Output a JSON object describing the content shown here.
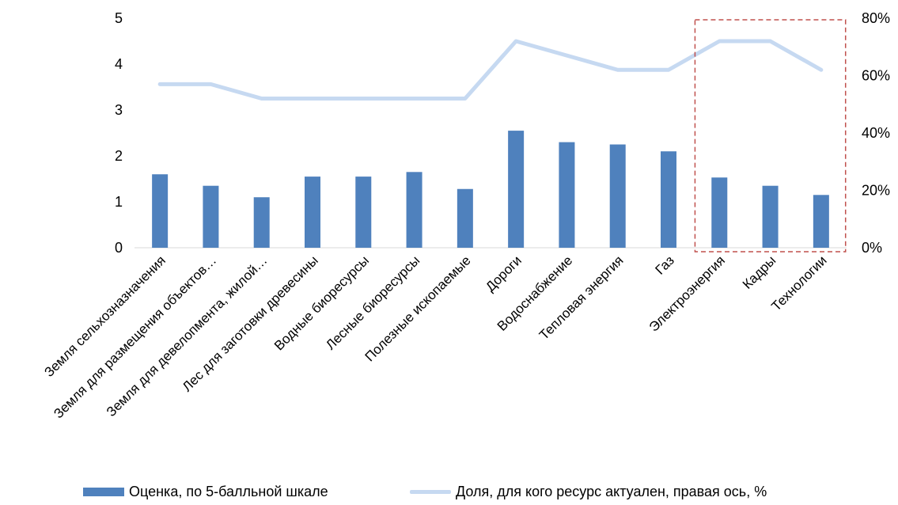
{
  "chart_data": {
    "type": "bar",
    "categories": [
      "Земля сельхозназначения",
      "Земля для размещения объектов…",
      "Земля для девелопмента, жилой…",
      "Лес для заготовки древесины",
      "Водные биоресурсы",
      "Лесные биоресурсы",
      "Полезные ископаемые",
      "Дороги",
      "Водоснабжение",
      "Тепловая энергия",
      "Газ",
      "Электроэнергия",
      "Кадры",
      "Технологии"
    ],
    "series": [
      {
        "name": "Оценка, по 5-балльной шкале",
        "type": "bar",
        "axis": "left",
        "values": [
          1.6,
          1.35,
          1.1,
          1.55,
          1.55,
          1.65,
          1.28,
          2.55,
          2.3,
          2.25,
          2.1,
          1.53,
          1.35,
          1.15
        ]
      },
      {
        "name": "Доля, для кого ресурс актуален, правая ось, %",
        "type": "line",
        "axis": "right",
        "values": [
          57,
          57,
          52,
          52,
          52,
          52,
          52,
          72,
          67,
          62,
          62,
          72,
          72,
          62
        ]
      }
    ],
    "y_left": {
      "min": 0,
      "max": 5,
      "ticks": [
        "0",
        "1",
        "2",
        "3",
        "4",
        "5"
      ]
    },
    "y_right": {
      "min": 0,
      "max": 80,
      "ticks": [
        "0%",
        "20%",
        "40%",
        "60%",
        "80%"
      ]
    },
    "highlight": {
      "from_category": "Электроэнергия",
      "to_category": "Технологии",
      "style": "dashed",
      "color": "#C0504D"
    },
    "colors": {
      "bar": "#4F81BD",
      "line": "#C6D9F1"
    },
    "grid": false,
    "legend_position": "bottom"
  }
}
